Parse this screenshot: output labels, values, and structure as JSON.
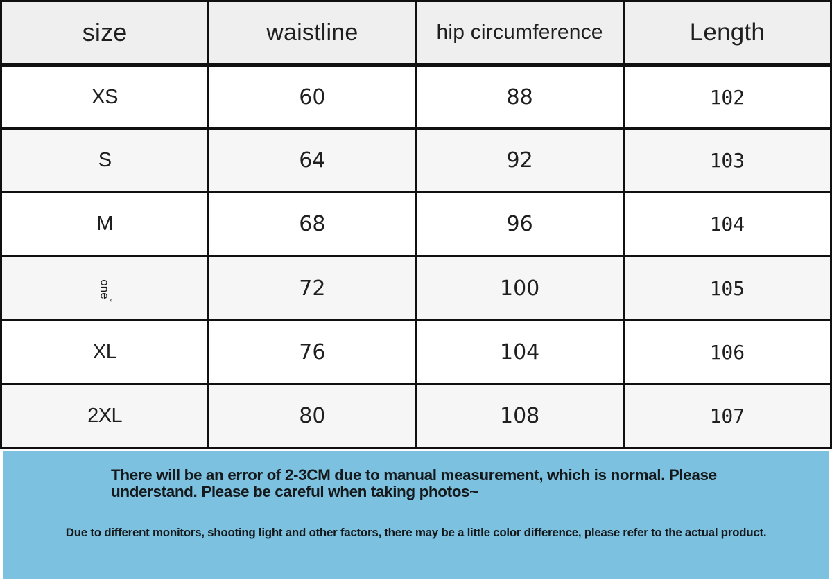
{
  "size_chart": {
    "headers": [
      "size",
      "waistline",
      "hip circumference",
      "Length"
    ],
    "rows": [
      {
        "size": "XS",
        "waistline": "60",
        "hip": "88",
        "length": "102"
      },
      {
        "size": "S",
        "waistline": "64",
        "hip": "92",
        "length": "103"
      },
      {
        "size": "M",
        "waistline": "68",
        "hip": "96",
        "length": "104"
      },
      {
        "size": "one",
        "size_mark": "˜",
        "waistline": "72",
        "hip": "100",
        "length": "105"
      },
      {
        "size": "XL",
        "waistline": "76",
        "hip": "104",
        "length": "106"
      },
      {
        "size": "2XL",
        "waistline": "80",
        "hip": "108",
        "length": "107"
      }
    ]
  },
  "notice": {
    "primary_line1": "There will be an error of 2-3CM due to manual measurement, which is normal. Please",
    "primary_line2": "understand. Please be careful when taking photos~",
    "secondary": "Due to different monitors, shooting light and other factors, there may be a little color difference, please refer to the actual product."
  },
  "colors": {
    "banner_blue": "#7cc2e0",
    "header_gray": "#efefef",
    "stripe_gray": "#f6f6f6",
    "border_black": "#101010"
  }
}
